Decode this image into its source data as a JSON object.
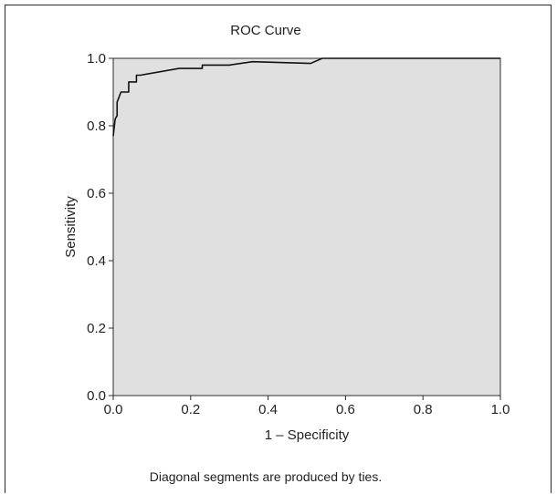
{
  "chart_data": {
    "type": "line",
    "title": "ROC Curve",
    "xlabel": "1 – Specificity",
    "ylabel": "Sensitivity",
    "xlim": [
      0.0,
      1.0
    ],
    "ylim": [
      0.0,
      1.0
    ],
    "x_ticks": [
      "0.0",
      "0.2",
      "0.4",
      "0.6",
      "0.8",
      "1.0"
    ],
    "y_ticks": [
      "0.0",
      "0.2",
      "0.4",
      "0.6",
      "0.8",
      "1.0"
    ],
    "grid": false,
    "plot_background": "#e0e0e0",
    "line_color": "#111111",
    "footnote": "Diagonal segments are produced by ties.",
    "series": [
      {
        "x": [
          0.0,
          0.005,
          0.01,
          0.01,
          0.02,
          0.04,
          0.04,
          0.06,
          0.06,
          0.07,
          0.07,
          0.17,
          0.23,
          0.23,
          0.3,
          0.36,
          0.51,
          0.54,
          1.0
        ],
        "y": [
          0.77,
          0.82,
          0.83,
          0.87,
          0.9,
          0.9,
          0.93,
          0.93,
          0.95,
          0.95,
          0.95,
          0.97,
          0.97,
          0.98,
          0.98,
          0.99,
          0.985,
          1.0,
          1.0
        ]
      }
    ]
  }
}
